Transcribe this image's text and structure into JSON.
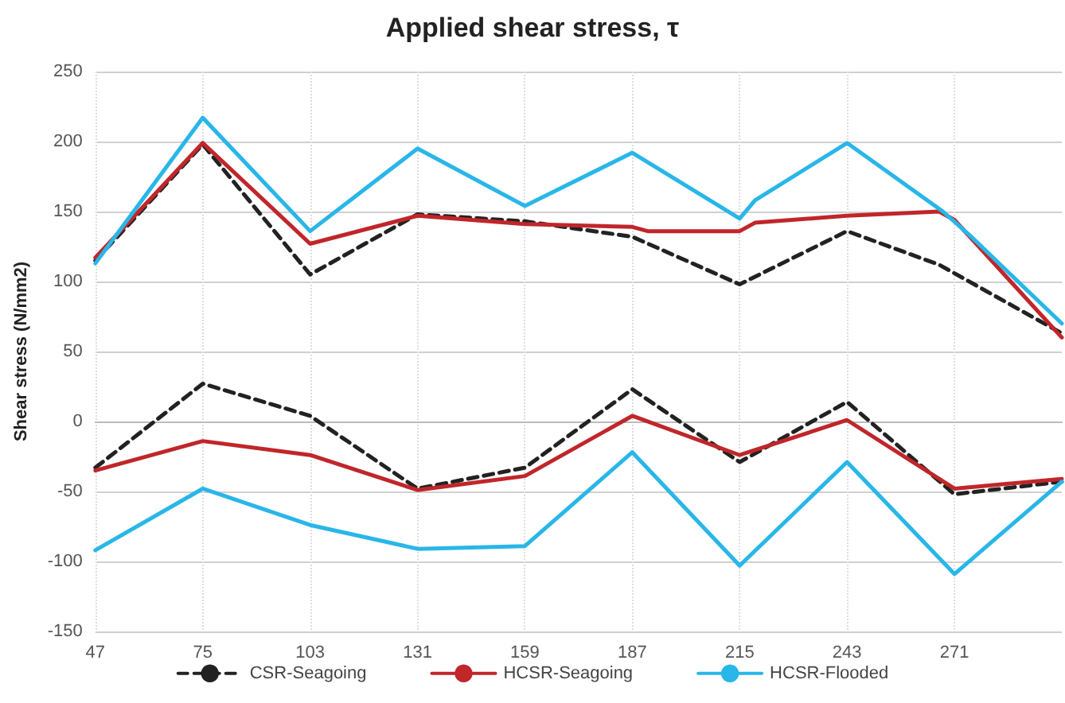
{
  "chart_data": {
    "type": "line",
    "title": "Applied shear stress, τ",
    "ylabel": "Shear stress (N/mm2)",
    "xlim": [
      47,
      299
    ],
    "xticks": [
      47,
      75,
      103,
      131,
      159,
      187,
      215,
      243,
      271
    ],
    "ylim": [
      -150,
      250
    ],
    "yticks": [
      -150,
      -100,
      -50,
      0,
      50,
      100,
      150,
      200,
      250
    ],
    "grid": true,
    "legend": "bottom",
    "marker": "none",
    "series": [
      {
        "name": "CSR-Seagoing",
        "color": "#222222",
        "line_style": "dashed",
        "x": [
          47,
          75,
          103,
          131,
          159,
          187,
          215,
          243,
          267,
          299
        ],
        "values": [
          115,
          198,
          105,
          148,
          143,
          132,
          98,
          136,
          112,
          63
        ]
      },
      {
        "name": "HCSR-Seagoing",
        "color": "#c0262a",
        "line_style": "solid",
        "x": [
          47,
          75,
          103,
          131,
          159,
          187,
          191,
          215,
          219,
          243,
          267,
          271,
          299
        ],
        "values": [
          117,
          199,
          127,
          147,
          141,
          139,
          136,
          136,
          142,
          147,
          150,
          144,
          60
        ]
      },
      {
        "name": "HCSR-Flooded",
        "color": "#29b6e8",
        "line_style": "solid",
        "x": [
          47,
          75,
          103,
          131,
          159,
          187,
          215,
          219,
          243,
          268,
          275,
          299
        ],
        "values": [
          113,
          217,
          136,
          195,
          154,
          192,
          145,
          158,
          199,
          150,
          133,
          70
        ]
      },
      {
        "color": "#222222",
        "line_style": "dashed",
        "x": [
          47,
          75,
          103,
          131,
          159,
          187,
          215,
          243,
          271,
          299
        ],
        "values": [
          -33,
          27,
          4,
          -48,
          -33,
          23,
          -29,
          14,
          -52,
          -43
        ]
      },
      {
        "color": "#c0262a",
        "line_style": "solid",
        "x": [
          47,
          75,
          103,
          131,
          159,
          187,
          215,
          243,
          271,
          299
        ],
        "values": [
          -35,
          -14,
          -24,
          -49,
          -39,
          4,
          -24,
          1,
          -48,
          -41
        ]
      },
      {
        "color": "#29b6e8",
        "line_style": "solid",
        "x": [
          47,
          75,
          103,
          131,
          159,
          187,
          215,
          243,
          271,
          299
        ],
        "values": [
          -92,
          -48,
          -74,
          -91,
          -89,
          -22,
          -103,
          -29,
          -109,
          -43
        ]
      }
    ]
  }
}
